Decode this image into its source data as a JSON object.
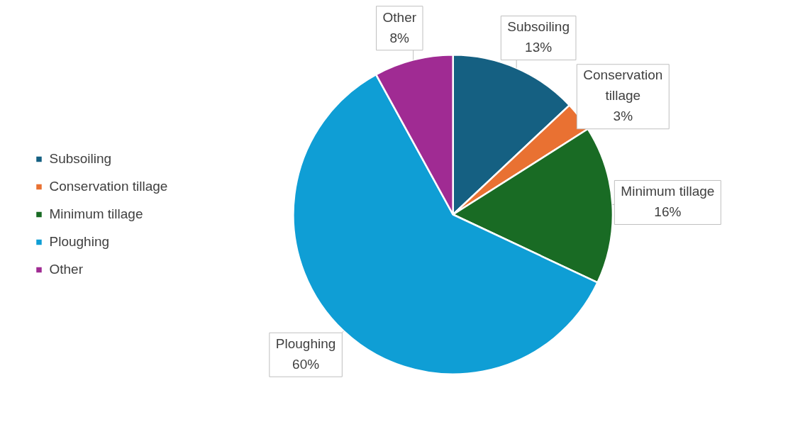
{
  "chart_data": {
    "type": "pie",
    "categories": [
      "Subsoiling",
      "Conservation tillage",
      "Minimum tillage",
      "Ploughing",
      "Other"
    ],
    "values": [
      13,
      3,
      16,
      60,
      8
    ],
    "value_labels": [
      "13%",
      "3%",
      "16%",
      "60%",
      "8%"
    ],
    "colors": [
      "#156082",
      "#e97132",
      "#196b24",
      "#0f9ed5",
      "#a02b93"
    ],
    "legend": "left"
  }
}
